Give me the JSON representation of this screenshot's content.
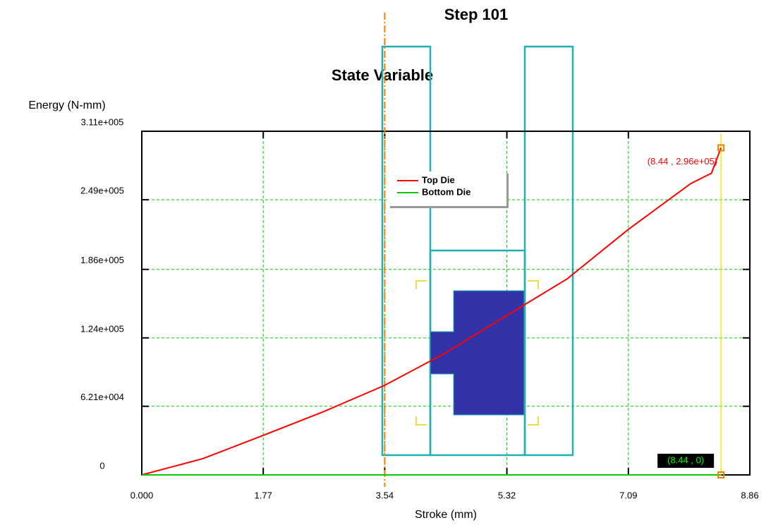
{
  "chart_data": {
    "type": "line",
    "title": "Step  101",
    "subtitle": "State Variable",
    "y_label": "Energy (N-mm)",
    "x_label": "Stroke (mm)",
    "xlim": [
      0,
      8.86
    ],
    "xticks": [
      {
        "value": 0,
        "label": "0.000"
      },
      1.77,
      3.54,
      5.32,
      7.09,
      8.86
    ],
    "ylim": [
      0,
      311000
    ],
    "yticks": [
      0,
      {
        "value": 62100,
        "label": "6.21e+004"
      },
      {
        "value": 124000,
        "label": "1.24e+005"
      },
      {
        "value": 186000,
        "label": "1.86e+005"
      },
      {
        "value": 249000,
        "label": "2.49e+005"
      },
      {
        "value": 311000,
        "label": "3.11e+005"
      }
    ],
    "grid": true,
    "legend": "upper center",
    "marker_x": 3.54,
    "readout_x": 8.44,
    "series": [
      {
        "name": "Top Die",
        "color": "#ff0000",
        "x": [
          0,
          0.89,
          1.77,
          2.66,
          3.54,
          4.43,
          5.32,
          6.2,
          7.09,
          8.0,
          8.3,
          8.44
        ],
        "values": [
          0,
          14700,
          35800,
          57500,
          81100,
          110500,
          144300,
          177500,
          222200,
          263700,
          273000,
          296000
        ]
      },
      {
        "name": "Bottom Die",
        "color": "#00cc00",
        "x": [
          0,
          8.44
        ],
        "values": [
          0,
          0
        ]
      }
    ],
    "annotations": [
      {
        "text": "(8.44 , 2.96e+05)",
        "x": 8.44,
        "y": 296000,
        "color": "#ff0000"
      },
      {
        "text": "(8.44 , 0)",
        "x": 8.44,
        "y": 0,
        "color": "#00ff00"
      }
    ]
  }
}
